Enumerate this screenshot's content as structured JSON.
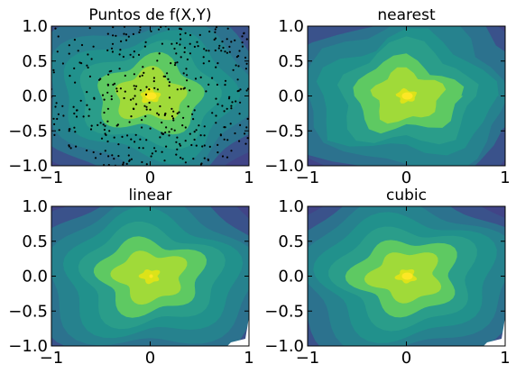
{
  "chart_data": [
    {
      "type": "contour+scatter",
      "title": "Puntos de f(X,Y)",
      "xlim": [
        -1,
        1
      ],
      "ylim": [
        -1,
        1
      ],
      "xticks": [
        "−1",
        "0",
        "1"
      ],
      "yticks": [
        "1.0",
        "0.5",
        "0.0",
        "−0.5",
        "−1.0"
      ],
      "field": "radially decreasing f(X,Y), maximum at (0,0)",
      "levels": 9,
      "colormap": "viridis",
      "scatter": {
        "color": "#000000",
        "approx_count": 400,
        "marker": "small dots"
      }
    },
    {
      "type": "contour",
      "title": "nearest",
      "xlim": [
        -1,
        1
      ],
      "ylim": [
        -1,
        1
      ],
      "xticks": [
        "−1",
        "0",
        "1"
      ],
      "yticks": [
        "1.0",
        "0.5",
        "0.0",
        "−0.5",
        "−1.0"
      ],
      "interpolation": "nearest",
      "levels": 9,
      "colormap": "viridis"
    },
    {
      "type": "contour",
      "title": "linear",
      "xlim": [
        -1,
        1
      ],
      "ylim": [
        -1,
        1
      ],
      "xticks": [
        "−1",
        "0",
        "1"
      ],
      "yticks": [
        "1.0",
        "0.5",
        "0.0",
        "−0.5",
        "−1.0"
      ],
      "interpolation": "linear",
      "levels": 9,
      "colormap": "viridis",
      "note_visual": "small white unfilled region at bottom-right corner"
    },
    {
      "type": "contour",
      "title": "cubic",
      "xlim": [
        -1,
        1
      ],
      "ylim": [
        -1,
        1
      ],
      "xticks": [
        "−1",
        "0",
        "1"
      ],
      "yticks": [
        "1.0",
        "0.5",
        "0.0",
        "−0.5",
        "−1.0"
      ],
      "interpolation": "cubic",
      "levels": 9,
      "colormap": "viridis",
      "note_visual": "small white unfilled region at bottom-right corner"
    }
  ],
  "colors": {
    "levels": [
      "#414487",
      "#3a528b",
      "#2c728e",
      "#26828e",
      "#21918c",
      "#2a9d8a",
      "#5ec962",
      "#a0da39",
      "#dce319"
    ]
  }
}
